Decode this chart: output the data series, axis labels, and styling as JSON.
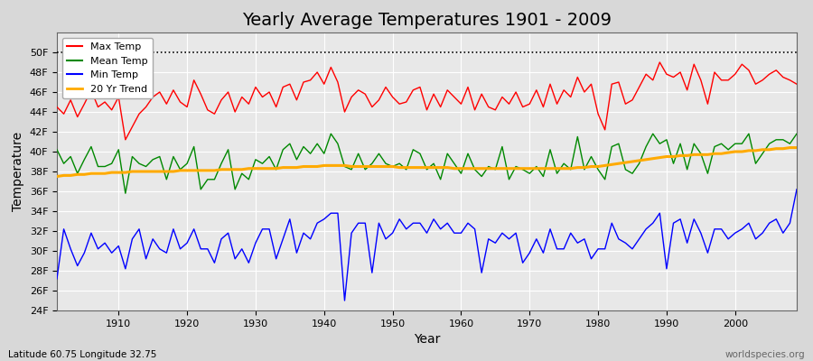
{
  "title": "Yearly Average Temperatures 1901 - 2009",
  "xlabel": "Year",
  "ylabel": "Temperature",
  "subtitle_lat_lon": "Latitude 60.75 Longitude 32.75",
  "watermark": "worldspecies.org",
  "years": [
    1901,
    1902,
    1903,
    1904,
    1905,
    1906,
    1907,
    1908,
    1909,
    1910,
    1911,
    1912,
    1913,
    1914,
    1915,
    1916,
    1917,
    1918,
    1919,
    1920,
    1921,
    1922,
    1923,
    1924,
    1925,
    1926,
    1927,
    1928,
    1929,
    1930,
    1931,
    1932,
    1933,
    1934,
    1935,
    1936,
    1937,
    1938,
    1939,
    1940,
    1941,
    1942,
    1943,
    1944,
    1945,
    1946,
    1947,
    1948,
    1949,
    1950,
    1951,
    1952,
    1953,
    1954,
    1955,
    1956,
    1957,
    1958,
    1959,
    1960,
    1961,
    1962,
    1963,
    1964,
    1965,
    1966,
    1967,
    1968,
    1969,
    1970,
    1971,
    1972,
    1973,
    1974,
    1975,
    1976,
    1977,
    1978,
    1979,
    1980,
    1981,
    1982,
    1983,
    1984,
    1985,
    1986,
    1987,
    1988,
    1989,
    1990,
    1991,
    1992,
    1993,
    1994,
    1995,
    1996,
    1997,
    1998,
    1999,
    2000,
    2001,
    2002,
    2003,
    2004,
    2005,
    2006,
    2007,
    2008,
    2009
  ],
  "max_temp": [
    44.5,
    43.8,
    45.2,
    43.5,
    44.8,
    46.2,
    44.5,
    45.0,
    44.2,
    45.5,
    41.2,
    42.5,
    43.8,
    44.5,
    45.5,
    46.0,
    44.8,
    46.2,
    45.0,
    44.5,
    47.2,
    45.8,
    44.2,
    43.8,
    45.2,
    46.0,
    44.0,
    45.5,
    44.8,
    46.5,
    45.5,
    46.0,
    44.5,
    46.5,
    46.8,
    45.2,
    47.0,
    47.2,
    48.0,
    46.8,
    48.5,
    47.0,
    44.0,
    45.5,
    46.2,
    45.8,
    44.5,
    45.2,
    46.5,
    45.5,
    44.8,
    45.0,
    46.2,
    46.5,
    44.2,
    45.8,
    44.5,
    46.2,
    45.5,
    44.8,
    46.5,
    44.2,
    45.8,
    44.5,
    44.2,
    45.5,
    44.8,
    46.0,
    44.5,
    44.8,
    46.2,
    44.5,
    46.8,
    44.8,
    46.2,
    45.5,
    47.5,
    46.0,
    46.8,
    43.8,
    42.2,
    46.8,
    47.0,
    44.8,
    45.2,
    46.5,
    47.8,
    47.2,
    49.0,
    47.8,
    47.5,
    48.0,
    46.2,
    48.8,
    47.2,
    44.8,
    48.0,
    47.2,
    47.2,
    47.8,
    48.8,
    48.2,
    46.8,
    47.2,
    47.8,
    48.2,
    47.5,
    47.2,
    46.8
  ],
  "mean_temp": [
    40.2,
    38.8,
    39.5,
    37.8,
    39.2,
    40.5,
    38.5,
    38.5,
    38.8,
    40.2,
    35.8,
    39.5,
    38.8,
    38.5,
    39.2,
    39.5,
    37.2,
    39.5,
    38.2,
    38.8,
    40.5,
    36.2,
    37.2,
    37.2,
    38.8,
    40.2,
    36.2,
    37.8,
    37.2,
    39.2,
    38.8,
    39.5,
    38.2,
    40.2,
    40.8,
    39.2,
    40.5,
    39.8,
    40.8,
    39.8,
    41.8,
    40.8,
    38.5,
    38.2,
    39.8,
    38.2,
    38.8,
    39.8,
    38.8,
    38.5,
    38.8,
    38.2,
    40.2,
    39.8,
    38.2,
    38.8,
    37.2,
    39.8,
    38.8,
    37.8,
    39.8,
    38.2,
    37.5,
    38.5,
    38.2,
    40.5,
    37.2,
    38.5,
    38.2,
    37.8,
    38.5,
    37.5,
    40.2,
    37.8,
    38.8,
    38.2,
    41.5,
    38.2,
    39.5,
    38.2,
    37.2,
    40.5,
    40.8,
    38.2,
    37.8,
    38.8,
    40.5,
    41.8,
    40.8,
    41.2,
    38.8,
    40.8,
    38.2,
    40.8,
    39.8,
    37.8,
    40.5,
    40.8,
    40.2,
    40.8,
    40.8,
    41.8,
    38.8,
    39.8,
    40.8,
    41.2,
    41.2,
    40.8,
    41.8
  ],
  "min_temp": [
    27.2,
    32.2,
    30.2,
    28.5,
    29.8,
    31.8,
    30.2,
    30.8,
    29.8,
    30.5,
    28.2,
    31.2,
    32.2,
    29.2,
    31.2,
    30.2,
    29.8,
    32.2,
    30.2,
    30.8,
    32.2,
    30.2,
    30.2,
    28.8,
    31.2,
    31.8,
    29.2,
    30.2,
    28.8,
    30.8,
    32.2,
    32.2,
    29.2,
    31.2,
    33.2,
    29.8,
    31.8,
    31.2,
    32.8,
    33.2,
    33.8,
    33.8,
    25.0,
    31.8,
    32.8,
    32.8,
    27.8,
    32.8,
    31.2,
    31.8,
    33.2,
    32.2,
    32.8,
    32.8,
    31.8,
    33.2,
    32.2,
    32.8,
    31.8,
    31.8,
    32.8,
    32.2,
    27.8,
    31.2,
    30.8,
    31.8,
    31.2,
    31.8,
    28.8,
    29.8,
    31.2,
    29.8,
    32.2,
    30.2,
    30.2,
    31.8,
    30.8,
    31.2,
    29.2,
    30.2,
    30.2,
    32.8,
    31.2,
    30.8,
    30.2,
    31.2,
    32.2,
    32.8,
    33.8,
    28.2,
    32.8,
    33.2,
    30.8,
    33.2,
    31.8,
    29.8,
    32.2,
    32.2,
    31.2,
    31.8,
    32.2,
    32.8,
    31.2,
    31.8,
    32.8,
    33.2,
    31.8,
    32.8,
    36.2
  ],
  "trend_20yr": [
    37.5,
    37.6,
    37.6,
    37.7,
    37.7,
    37.8,
    37.8,
    37.8,
    37.9,
    37.9,
    37.9,
    38.0,
    38.0,
    38.0,
    38.0,
    38.0,
    38.0,
    38.0,
    38.1,
    38.1,
    38.1,
    38.1,
    38.1,
    38.1,
    38.2,
    38.2,
    38.2,
    38.2,
    38.3,
    38.3,
    38.3,
    38.3,
    38.3,
    38.4,
    38.4,
    38.4,
    38.5,
    38.5,
    38.5,
    38.6,
    38.6,
    38.6,
    38.6,
    38.5,
    38.5,
    38.5,
    38.5,
    38.5,
    38.5,
    38.5,
    38.4,
    38.4,
    38.4,
    38.4,
    38.4,
    38.4,
    38.4,
    38.4,
    38.3,
    38.3,
    38.3,
    38.3,
    38.3,
    38.3,
    38.3,
    38.3,
    38.3,
    38.3,
    38.3,
    38.3,
    38.3,
    38.3,
    38.3,
    38.3,
    38.3,
    38.3,
    38.4,
    38.4,
    38.5,
    38.5,
    38.6,
    38.7,
    38.8,
    38.9,
    39.0,
    39.1,
    39.2,
    39.3,
    39.4,
    39.5,
    39.5,
    39.6,
    39.6,
    39.7,
    39.7,
    39.7,
    39.8,
    39.8,
    39.9,
    40.0,
    40.0,
    40.1,
    40.1,
    40.2,
    40.2,
    40.3,
    40.3,
    40.4,
    40.4
  ],
  "max_color": "#ff0000",
  "mean_color": "#008800",
  "min_color": "#0000ff",
  "trend_color": "#ffaa00",
  "fig_bg_color": "#d8d8d8",
  "plot_bg_color": "#e8e8e8",
  "ylim_min": 24,
  "ylim_max": 52,
  "yticks": [
    24,
    26,
    28,
    30,
    32,
    34,
    36,
    38,
    40,
    42,
    44,
    46,
    48,
    50
  ],
  "xticks": [
    1910,
    1920,
    1930,
    1940,
    1950,
    1960,
    1970,
    1980,
    1990,
    2000
  ],
  "dotted_line_y": 50,
  "title_fontsize": 14,
  "xlim_min": 1901,
  "xlim_max": 2009
}
